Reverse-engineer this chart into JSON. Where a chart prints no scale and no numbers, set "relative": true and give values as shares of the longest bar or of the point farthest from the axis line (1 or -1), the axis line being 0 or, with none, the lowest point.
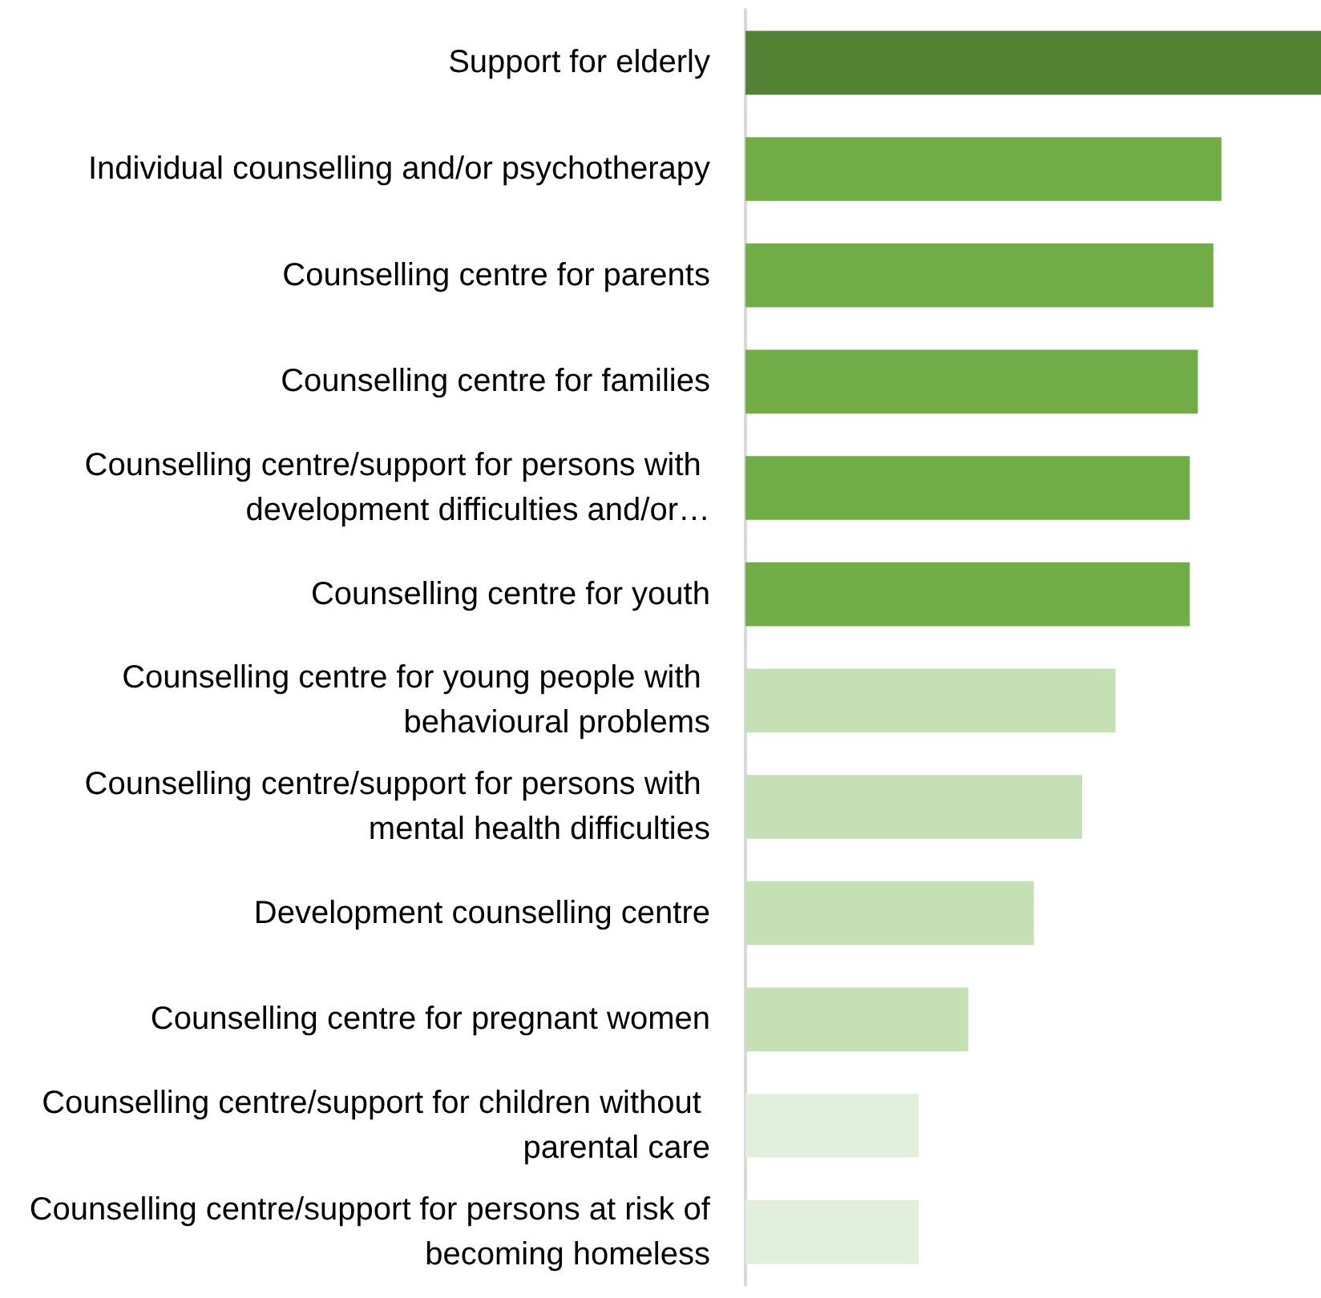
{
  "chart_data": {
    "type": "bar",
    "orientation": "horizontal",
    "relative": true,
    "categories": [
      "Support for elderly",
      "Individual counselling and/or psychotherapy",
      "Counselling centre for parents",
      "Counselling centre for families",
      "Counselling centre/support for persons with development difficulties and/or…",
      "Counselling centre for youth",
      "Counselling centre for young people with behavioural problems",
      "Counselling centre/support for persons with mental health difficulties",
      "Development counselling centre",
      "Counselling centre for pregnant women",
      "Counselling centre/support for children without parental care",
      "Counselling centre/support for persons at risk of becoming homeless"
    ],
    "values": [
      1,
      0.827,
      0.813,
      0.786,
      0.772,
      0.772,
      0.643,
      0.585,
      0.501,
      0.387,
      0.301,
      0.301
    ],
    "colors": [
      "#548235",
      "#70ad47",
      "#70ad47",
      "#70ad47",
      "#70ad47",
      "#70ad47",
      "#c5e0b4",
      "#c5e0b4",
      "#c5e0b4",
      "#c5e0b4",
      "#e2efda",
      "#e2efda"
    ]
  }
}
